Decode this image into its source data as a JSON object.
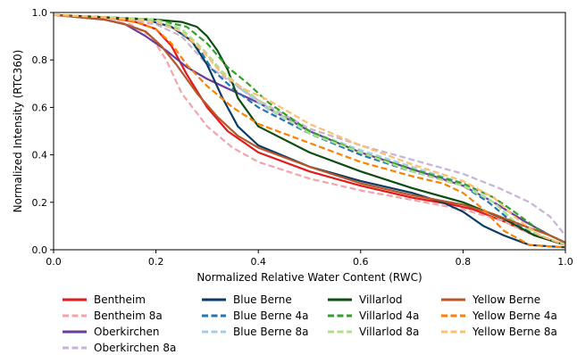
{
  "chart_data": {
    "type": "line",
    "title": "",
    "xlabel": "Normalized Relative Water Content (RWC)",
    "ylabel": "Normalized Intensity (RTC360)",
    "xlim": [
      0,
      1
    ],
    "ylim": [
      0,
      1
    ],
    "xticks": [
      "0.0",
      "0.2",
      "0.4",
      "0.6",
      "0.8",
      "1.0"
    ],
    "yticks": [
      "0.0",
      "0.2",
      "0.4",
      "0.6",
      "0.8",
      "1.0"
    ],
    "grid": false,
    "legend_position": "bottom",
    "series": [
      {
        "name": "Bentheim",
        "color": "#e31a1c",
        "dash": "solid",
        "x": [
          0.0,
          0.1,
          0.16,
          0.2,
          0.23,
          0.26,
          0.3,
          0.34,
          0.4,
          0.5,
          0.6,
          0.7,
          0.78,
          0.82,
          0.88,
          0.94,
          1.0
        ],
        "y": [
          0.99,
          0.98,
          0.96,
          0.93,
          0.86,
          0.74,
          0.6,
          0.5,
          0.41,
          0.33,
          0.27,
          0.22,
          0.19,
          0.17,
          0.12,
          0.06,
          0.02
        ]
      },
      {
        "name": "Bentheim 8a",
        "color": "#f4a3a8",
        "dash": "dashed",
        "x": [
          0.0,
          0.1,
          0.15,
          0.19,
          0.22,
          0.25,
          0.3,
          0.35,
          0.4,
          0.5,
          0.6,
          0.7,
          0.8,
          0.88,
          0.94,
          1.0
        ],
        "y": [
          0.99,
          0.97,
          0.95,
          0.9,
          0.8,
          0.66,
          0.52,
          0.43,
          0.37,
          0.3,
          0.25,
          0.21,
          0.17,
          0.12,
          0.06,
          0.02
        ]
      },
      {
        "name": "Oberkirchen",
        "color": "#6a3d9a",
        "dash": "solid",
        "x": [
          0.0,
          0.1,
          0.14,
          0.18,
          0.22,
          0.26,
          0.3,
          0.35,
          0.4,
          0.5,
          0.6,
          0.7,
          0.8,
          0.86,
          0.92,
          0.97,
          1.0
        ],
        "y": [
          0.99,
          0.97,
          0.95,
          0.9,
          0.84,
          0.77,
          0.72,
          0.67,
          0.62,
          0.5,
          0.41,
          0.34,
          0.27,
          0.2,
          0.12,
          0.06,
          0.03
        ]
      },
      {
        "name": "Oberkirchen 8a",
        "color": "#cab2d6",
        "dash": "dashed",
        "x": [
          0.0,
          0.1,
          0.2,
          0.25,
          0.3,
          0.35,
          0.4,
          0.5,
          0.6,
          0.7,
          0.8,
          0.87,
          0.93,
          0.97,
          1.0
        ],
        "y": [
          0.99,
          0.98,
          0.95,
          0.9,
          0.78,
          0.7,
          0.63,
          0.51,
          0.44,
          0.38,
          0.32,
          0.26,
          0.2,
          0.14,
          0.06
        ]
      },
      {
        "name": "Blue Berne",
        "color": "#0b3b64",
        "dash": "solid",
        "x": [
          0.0,
          0.1,
          0.18,
          0.23,
          0.27,
          0.3,
          0.33,
          0.36,
          0.4,
          0.5,
          0.6,
          0.7,
          0.76,
          0.8,
          0.84,
          0.88,
          0.93,
          1.0
        ],
        "y": [
          0.99,
          0.98,
          0.97,
          0.94,
          0.88,
          0.78,
          0.64,
          0.52,
          0.44,
          0.35,
          0.29,
          0.24,
          0.2,
          0.16,
          0.1,
          0.06,
          0.02,
          0.01
        ]
      },
      {
        "name": "Blue Berne 4a",
        "color": "#1f78b4",
        "dash": "dashed",
        "x": [
          0.0,
          0.1,
          0.18,
          0.24,
          0.28,
          0.31,
          0.35,
          0.4,
          0.5,
          0.6,
          0.7,
          0.8,
          0.85,
          0.9,
          0.95,
          1.0
        ],
        "y": [
          0.99,
          0.98,
          0.97,
          0.93,
          0.86,
          0.76,
          0.68,
          0.6,
          0.49,
          0.4,
          0.33,
          0.27,
          0.2,
          0.11,
          0.06,
          0.02
        ]
      },
      {
        "name": "Blue Berne 8a",
        "color": "#a6cee3",
        "dash": "dashed",
        "x": [
          0.0,
          0.1,
          0.2,
          0.25,
          0.29,
          0.33,
          0.37,
          0.42,
          0.5,
          0.6,
          0.7,
          0.8,
          0.86,
          0.9,
          0.95,
          1.0
        ],
        "y": [
          0.99,
          0.98,
          0.97,
          0.93,
          0.85,
          0.74,
          0.67,
          0.59,
          0.5,
          0.42,
          0.35,
          0.28,
          0.2,
          0.12,
          0.06,
          0.02
        ]
      },
      {
        "name": "Villarlod",
        "color": "#0d4d12",
        "dash": "solid",
        "x": [
          0.0,
          0.1,
          0.2,
          0.25,
          0.28,
          0.3,
          0.32,
          0.34,
          0.36,
          0.4,
          0.5,
          0.6,
          0.7,
          0.8,
          0.88,
          0.94,
          1.0
        ],
        "y": [
          0.99,
          0.98,
          0.97,
          0.96,
          0.94,
          0.9,
          0.84,
          0.76,
          0.64,
          0.52,
          0.41,
          0.33,
          0.26,
          0.2,
          0.13,
          0.06,
          0.02
        ]
      },
      {
        "name": "Villarlod 4a",
        "color": "#33a02c",
        "dash": "dashed",
        "x": [
          0.0,
          0.1,
          0.2,
          0.26,
          0.3,
          0.34,
          0.38,
          0.42,
          0.5,
          0.6,
          0.7,
          0.8,
          0.86,
          0.9,
          0.95,
          1.0
        ],
        "y": [
          0.99,
          0.98,
          0.97,
          0.94,
          0.87,
          0.77,
          0.7,
          0.62,
          0.5,
          0.41,
          0.34,
          0.28,
          0.22,
          0.16,
          0.08,
          0.03
        ]
      },
      {
        "name": "Villarlod 8a",
        "color": "#b2df8a",
        "dash": "dashed",
        "x": [
          0.0,
          0.1,
          0.2,
          0.25,
          0.29,
          0.33,
          0.37,
          0.42,
          0.5,
          0.6,
          0.7,
          0.8,
          0.86,
          0.9,
          0.95,
          1.0
        ],
        "y": [
          0.99,
          0.98,
          0.97,
          0.93,
          0.85,
          0.75,
          0.68,
          0.6,
          0.49,
          0.41,
          0.33,
          0.27,
          0.2,
          0.12,
          0.06,
          0.02
        ]
      },
      {
        "name": "Yellow Berne",
        "color": "#b5572a",
        "dash": "solid",
        "x": [
          0.0,
          0.1,
          0.14,
          0.18,
          0.21,
          0.24,
          0.28,
          0.32,
          0.36,
          0.4,
          0.5,
          0.6,
          0.7,
          0.8,
          0.86,
          0.92,
          0.97,
          1.0
        ],
        "y": [
          0.99,
          0.97,
          0.95,
          0.92,
          0.86,
          0.78,
          0.66,
          0.56,
          0.48,
          0.43,
          0.35,
          0.28,
          0.23,
          0.19,
          0.15,
          0.1,
          0.06,
          0.03
        ]
      },
      {
        "name": "Yellow Berne 4a",
        "color": "#ff7f00",
        "dash": "dashed",
        "x": [
          0.0,
          0.1,
          0.16,
          0.2,
          0.23,
          0.26,
          0.3,
          0.35,
          0.4,
          0.5,
          0.6,
          0.7,
          0.76,
          0.8,
          0.84,
          0.88,
          0.93,
          1.0
        ],
        "y": [
          0.99,
          0.98,
          0.96,
          0.93,
          0.87,
          0.78,
          0.69,
          0.6,
          0.53,
          0.45,
          0.37,
          0.31,
          0.28,
          0.24,
          0.17,
          0.08,
          0.02,
          0.01
        ]
      },
      {
        "name": "Yellow Berne 8a",
        "color": "#fdbf6f",
        "dash": "dashed",
        "x": [
          0.0,
          0.1,
          0.2,
          0.25,
          0.29,
          0.33,
          0.37,
          0.42,
          0.5,
          0.6,
          0.7,
          0.8,
          0.86,
          0.9,
          0.95,
          1.0
        ],
        "y": [
          0.99,
          0.98,
          0.96,
          0.92,
          0.84,
          0.74,
          0.68,
          0.63,
          0.53,
          0.44,
          0.36,
          0.29,
          0.22,
          0.14,
          0.06,
          0.02
        ]
      }
    ],
    "legend_order": [
      [
        "Bentheim",
        "Bentheim 8a",
        "Oberkirchen",
        "Oberkirchen 8a"
      ],
      [
        "Blue Berne",
        "Blue Berne 4a",
        "Blue Berne 8a"
      ],
      [
        "Villarlod",
        "Villarlod 4a",
        "Villarlod 8a"
      ],
      [
        "Yellow Berne",
        "Yellow Berne 4a",
        "Yellow Berne 8a"
      ]
    ]
  }
}
